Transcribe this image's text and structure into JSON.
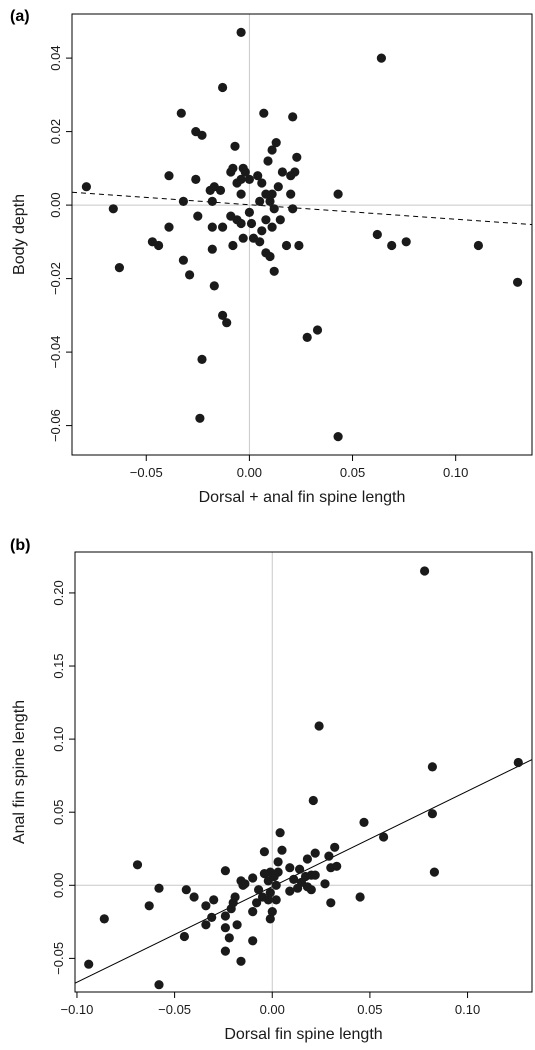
{
  "colors": {
    "point": "#1a1a1a",
    "frame": "#000000",
    "zero_line": "#c8c8c8",
    "fit_line": "#000000"
  },
  "chart_data": [
    {
      "type": "scatter",
      "panel_label": "(a)",
      "xlabel": "Dorsal + anal fin spine length",
      "ylabel": "Body depth",
      "xlim": [
        -0.086,
        0.137
      ],
      "ylim": [
        -0.068,
        0.052
      ],
      "xticks": [
        {
          "v": -0.05,
          "label": "−0.05"
        },
        {
          "v": 0.0,
          "label": "0.00"
        },
        {
          "v": 0.05,
          "label": "0.05"
        },
        {
          "v": 0.1,
          "label": "0.10"
        }
      ],
      "yticks": [
        {
          "v": -0.06,
          "label": "−0.06"
        },
        {
          "v": -0.04,
          "label": "−0.04"
        },
        {
          "v": -0.02,
          "label": "−0.02"
        },
        {
          "v": 0.0,
          "label": "0.00"
        },
        {
          "v": 0.02,
          "label": "0.02"
        },
        {
          "v": 0.04,
          "label": "0.04"
        }
      ],
      "grid": false,
      "zero_lines": true,
      "fit_line": {
        "style": "dashed",
        "x": [
          -0.086,
          0.137
        ],
        "y": [
          0.0035,
          -0.0053
        ]
      },
      "points": [
        [
          -0.004,
          0.047
        ],
        [
          0.064,
          0.04
        ],
        [
          -0.013,
          0.032
        ],
        [
          -0.033,
          0.025
        ],
        [
          0.007,
          0.025
        ],
        [
          0.021,
          0.024
        ],
        [
          -0.026,
          0.02
        ],
        [
          -0.023,
          0.019
        ],
        [
          0.013,
          0.017
        ],
        [
          -0.007,
          0.016
        ],
        [
          0.011,
          0.015
        ],
        [
          0.023,
          0.013
        ],
        [
          0.009,
          0.012
        ],
        [
          0.016,
          0.009
        ],
        [
          -0.008,
          0.01
        ],
        [
          -0.003,
          0.01
        ],
        [
          -0.002,
          0.009
        ],
        [
          0.022,
          0.009
        ],
        [
          0.004,
          0.008
        ],
        [
          0.02,
          0.008
        ],
        [
          -0.039,
          0.008
        ],
        [
          -0.009,
          0.009
        ],
        [
          -0.004,
          0.007
        ],
        [
          0.0,
          0.007
        ],
        [
          -0.006,
          0.006
        ],
        [
          0.006,
          0.006
        ],
        [
          0.014,
          0.005
        ],
        [
          -0.017,
          0.005
        ],
        [
          -0.019,
          0.004
        ],
        [
          -0.079,
          0.005
        ],
        [
          -0.014,
          0.004
        ],
        [
          -0.004,
          0.003
        ],
        [
          0.008,
          0.003
        ],
        [
          0.011,
          0.003
        ],
        [
          0.02,
          0.003
        ],
        [
          0.043,
          0.003
        ],
        [
          -0.018,
          0.001
        ],
        [
          -0.032,
          0.001
        ],
        [
          -0.026,
          0.007
        ],
        [
          0.005,
          0.001
        ],
        [
          0.01,
          0.001
        ],
        [
          -0.066,
          -0.001
        ],
        [
          0.012,
          -0.001
        ],
        [
          0.021,
          -0.001
        ],
        [
          0.0,
          -0.002
        ],
        [
          -0.009,
          -0.003
        ],
        [
          -0.025,
          -0.003
        ],
        [
          -0.006,
          -0.004
        ],
        [
          0.008,
          -0.004
        ],
        [
          0.015,
          -0.004
        ],
        [
          -0.004,
          -0.005
        ],
        [
          0.001,
          -0.005
        ],
        [
          -0.018,
          -0.006
        ],
        [
          -0.013,
          -0.006
        ],
        [
          -0.039,
          -0.006
        ],
        [
          0.011,
          -0.006
        ],
        [
          0.006,
          -0.007
        ],
        [
          0.062,
          -0.008
        ],
        [
          0.002,
          -0.009
        ],
        [
          -0.003,
          -0.009
        ],
        [
          0.005,
          -0.01
        ],
        [
          0.076,
          -0.01
        ],
        [
          -0.047,
          -0.01
        ],
        [
          -0.044,
          -0.011
        ],
        [
          -0.008,
          -0.011
        ],
        [
          0.018,
          -0.011
        ],
        [
          0.024,
          -0.011
        ],
        [
          0.111,
          -0.011
        ],
        [
          0.069,
          -0.011
        ],
        [
          -0.018,
          -0.012
        ],
        [
          0.008,
          -0.013
        ],
        [
          0.01,
          -0.014
        ],
        [
          -0.032,
          -0.015
        ],
        [
          -0.063,
          -0.017
        ],
        [
          0.012,
          -0.018
        ],
        [
          -0.029,
          -0.019
        ],
        [
          0.13,
          -0.021
        ],
        [
          -0.017,
          -0.022
        ],
        [
          -0.013,
          -0.03
        ],
        [
          -0.011,
          -0.032
        ],
        [
          0.033,
          -0.034
        ],
        [
          0.028,
          -0.036
        ],
        [
          -0.023,
          -0.042
        ],
        [
          -0.024,
          -0.058
        ],
        [
          0.043,
          -0.063
        ]
      ]
    },
    {
      "type": "scatter",
      "panel_label": "(b)",
      "xlabel": "Dorsal fin spine length",
      "ylabel": "Anal fin spine length",
      "xlim": [
        -0.101,
        0.133
      ],
      "ylim": [
        -0.073,
        0.228
      ],
      "xticks": [
        {
          "v": -0.1,
          "label": "−0.10"
        },
        {
          "v": -0.05,
          "label": "−0.05"
        },
        {
          "v": 0.0,
          "label": "0.00"
        },
        {
          "v": 0.05,
          "label": "0.05"
        },
        {
          "v": 0.1,
          "label": "0.10"
        }
      ],
      "yticks": [
        {
          "v": -0.05,
          "label": "−0.05"
        },
        {
          "v": 0.0,
          "label": "0.00"
        },
        {
          "v": 0.05,
          "label": "0.05"
        },
        {
          "v": 0.1,
          "label": "0.10"
        },
        {
          "v": 0.15,
          "label": "0.15"
        },
        {
          "v": 0.2,
          "label": "0.20"
        }
      ],
      "grid": false,
      "zero_lines": true,
      "fit_line": {
        "style": "solid",
        "x": [
          -0.101,
          0.133
        ],
        "y": [
          -0.067,
          0.086
        ]
      },
      "points": [
        [
          0.078,
          0.215
        ],
        [
          0.024,
          0.109
        ],
        [
          0.126,
          0.084
        ],
        [
          0.082,
          0.081
        ],
        [
          0.021,
          0.058
        ],
        [
          0.082,
          0.049
        ],
        [
          0.047,
          0.043
        ],
        [
          0.004,
          0.036
        ],
        [
          0.057,
          0.033
        ],
        [
          0.032,
          0.026
        ],
        [
          -0.004,
          0.023
        ],
        [
          0.005,
          0.024
        ],
        [
          0.022,
          0.022
        ],
        [
          0.029,
          0.02
        ],
        [
          0.018,
          0.018
        ],
        [
          0.003,
          0.016
        ],
        [
          -0.069,
          0.014
        ],
        [
          0.033,
          0.013
        ],
        [
          0.009,
          0.012
        ],
        [
          0.03,
          0.012
        ],
        [
          0.014,
          0.011
        ],
        [
          -0.024,
          0.01
        ],
        [
          -0.001,
          0.009
        ],
        [
          0.003,
          0.009
        ],
        [
          -0.004,
          0.008
        ],
        [
          0.02,
          0.007
        ],
        [
          0.022,
          0.007
        ],
        [
          0.001,
          0.006
        ],
        [
          0.017,
          0.006
        ],
        [
          0.083,
          0.009
        ],
        [
          -0.01,
          0.005
        ],
        [
          0.011,
          0.004
        ],
        [
          -0.016,
          0.003
        ],
        [
          -0.002,
          0.003
        ],
        [
          0.015,
          0.002
        ],
        [
          -0.014,
          0.001
        ],
        [
          0.027,
          0.001
        ],
        [
          0.002,
          0.0
        ],
        [
          -0.015,
          0.0
        ],
        [
          -0.058,
          -0.002
        ],
        [
          0.018,
          -0.001
        ],
        [
          0.013,
          -0.002
        ],
        [
          -0.044,
          -0.003
        ],
        [
          -0.007,
          -0.003
        ],
        [
          0.02,
          -0.003
        ],
        [
          0.009,
          -0.004
        ],
        [
          -0.001,
          -0.005
        ],
        [
          -0.04,
          -0.008
        ],
        [
          -0.019,
          -0.008
        ],
        [
          -0.005,
          -0.008
        ],
        [
          0.045,
          -0.008
        ],
        [
          -0.002,
          -0.01
        ],
        [
          0.002,
          -0.01
        ],
        [
          -0.03,
          -0.01
        ],
        [
          -0.02,
          -0.012
        ],
        [
          -0.008,
          -0.012
        ],
        [
          0.03,
          -0.012
        ],
        [
          -0.034,
          -0.014
        ],
        [
          -0.063,
          -0.014
        ],
        [
          -0.021,
          -0.016
        ],
        [
          0.0,
          -0.018
        ],
        [
          -0.01,
          -0.018
        ],
        [
          -0.024,
          -0.021
        ],
        [
          -0.031,
          -0.022
        ],
        [
          -0.086,
          -0.023
        ],
        [
          -0.001,
          -0.023
        ],
        [
          -0.034,
          -0.027
        ],
        [
          -0.024,
          -0.029
        ],
        [
          -0.018,
          -0.027
        ],
        [
          -0.045,
          -0.035
        ],
        [
          -0.022,
          -0.036
        ],
        [
          -0.01,
          -0.038
        ],
        [
          -0.024,
          -0.045
        ],
        [
          -0.016,
          -0.052
        ],
        [
          -0.094,
          -0.054
        ],
        [
          -0.058,
          -0.068
        ]
      ]
    }
  ]
}
